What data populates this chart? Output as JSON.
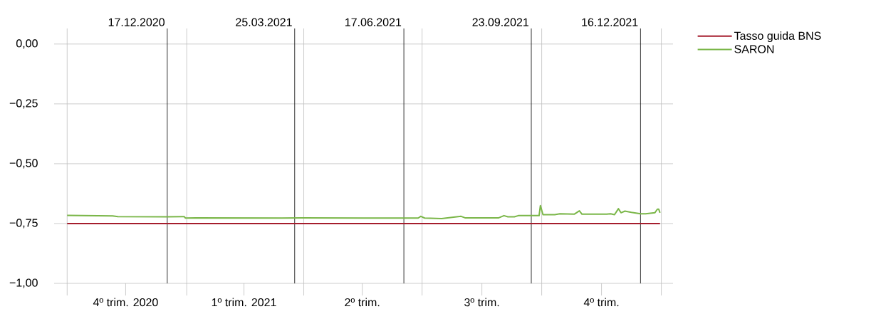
{
  "chart_data": {
    "type": "line",
    "xlim": [
      "2020-09-21",
      "2022-01-10"
    ],
    "ylim": [
      -1.0,
      0.065
    ],
    "xticks": [
      {
        "value": "2020-10-01",
        "label": null
      },
      {
        "value": "2021-01-01",
        "label": null
      },
      {
        "value": "2021-04-01",
        "label": null
      },
      {
        "value": "2021-07-01",
        "label": null
      },
      {
        "value": "2021-10-01",
        "label": null
      },
      {
        "value": "2022-01-01",
        "label": null
      },
      {
        "value": "2020-11-15",
        "label": "4º trim. 2020"
      },
      {
        "value": "2021-02-14",
        "label": "1º trim. 2021"
      },
      {
        "value": "2021-05-16",
        "label": "2º trim."
      },
      {
        "value": "2021-08-16",
        "label": "3º trim."
      },
      {
        "value": "2021-11-16",
        "label": "4º trim."
      }
    ],
    "yticks": [
      {
        "value": 0,
        "label": "0,00"
      },
      {
        "value": -0.25,
        "label": "−0,25"
      },
      {
        "value": -0.5,
        "label": "−0,50"
      },
      {
        "value": -0.75,
        "label": "−0,75"
      },
      {
        "value": -1.0,
        "label": "−1,00"
      }
    ],
    "grid": true,
    "legend": "top right",
    "line_style": "solid",
    "ref_lines": [
      {
        "axis": "x",
        "value": "2020-12-17",
        "label": "17.12.2020",
        "color": "#000000"
      },
      {
        "axis": "x",
        "value": "2021-03-25",
        "label": "25.03.2021",
        "color": "#000000"
      },
      {
        "axis": "x",
        "value": "2021-06-17",
        "label": "17.06.2021",
        "color": "#000000"
      },
      {
        "axis": "x",
        "value": "2021-09-23",
        "label": "23.09.2021",
        "color": "#000000"
      },
      {
        "axis": "x",
        "value": "2021-12-16",
        "label": "16.12.2021",
        "color": "#000000"
      }
    ],
    "series": [
      {
        "name": "Tasso guida BNS",
        "color": "#a51d2d",
        "x": [
          "2020-10-01",
          "2021-12-31"
        ],
        "values": [
          -0.75,
          -0.75
        ]
      },
      {
        "name": "SARON",
        "color": "#7ab648",
        "x": [
          "2020-10-01",
          "2020-11-05",
          "2020-11-09",
          "2020-12-17",
          "2020-12-30",
          "2020-12-31",
          "2021-01-08",
          "2021-03-15",
          "2021-03-31",
          "2021-05-25",
          "2021-06-28",
          "2021-06-30",
          "2021-07-03",
          "2021-07-16",
          "2021-07-31",
          "2021-08-03",
          "2021-08-29",
          "2021-09-02",
          "2021-09-05",
          "2021-09-10",
          "2021-09-13",
          "2021-09-27",
          "2021-09-29",
          "2021-09-30",
          "2021-10-02",
          "2021-10-11",
          "2021-10-15",
          "2021-10-26",
          "2021-10-30",
          "2021-11-01",
          "2021-11-20",
          "2021-11-23",
          "2021-11-26",
          "2021-11-29",
          "2021-12-01",
          "2021-12-04",
          "2021-12-09",
          "2021-12-16",
          "2021-12-20",
          "2021-12-27",
          "2021-12-29",
          "2021-12-30",
          "2021-12-31"
        ],
        "values": [
          -0.716,
          -0.718,
          -0.721,
          -0.722,
          -0.721,
          -0.727,
          -0.726,
          -0.727,
          -0.726,
          -0.727,
          -0.727,
          -0.72,
          -0.727,
          -0.729,
          -0.72,
          -0.726,
          -0.726,
          -0.717,
          -0.722,
          -0.722,
          -0.717,
          -0.717,
          -0.717,
          -0.675,
          -0.713,
          -0.713,
          -0.709,
          -0.711,
          -0.697,
          -0.711,
          -0.711,
          -0.709,
          -0.713,
          -0.688,
          -0.705,
          -0.698,
          -0.703,
          -0.709,
          -0.709,
          -0.705,
          -0.69,
          -0.69,
          -0.705
        ]
      }
    ]
  }
}
